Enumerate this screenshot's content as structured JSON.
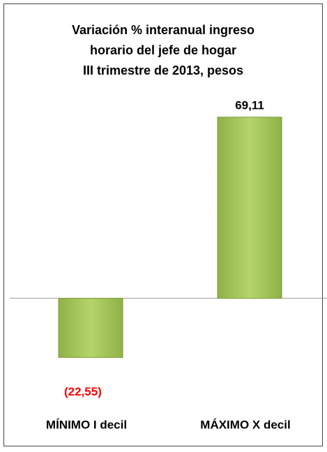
{
  "chart_data": {
    "type": "bar",
    "title": [
      "Variación % interanual ingreso",
      "horario del jefe de hogar",
      "III trimestre de 2013, pesos"
    ],
    "categories": [
      "MÍNIMO I decil",
      "MÁXIMO X decil"
    ],
    "values": [
      -22.55,
      69.11
    ],
    "value_labels": [
      "(22,55)",
      "69,11"
    ],
    "color": "#9bbb59",
    "negative_label_color": "#ff0000",
    "ylim": [
      -40,
      80
    ],
    "grid": false
  }
}
